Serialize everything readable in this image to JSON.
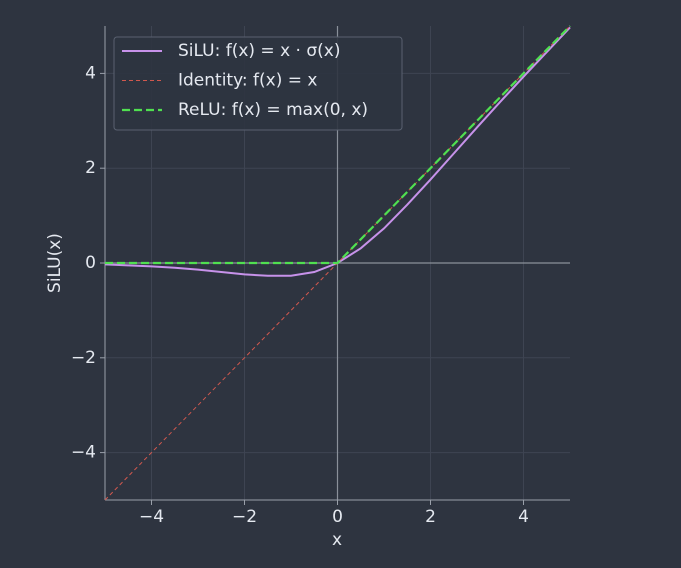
{
  "chart_data": {
    "type": "line",
    "xlabel": "x",
    "ylabel": "SiLU(x)",
    "x": [
      -5,
      -4.5,
      -4,
      -3.5,
      -3,
      -2.5,
      -2,
      -1.5,
      -1,
      -0.5,
      0,
      0.5,
      1,
      1.5,
      2,
      2.5,
      3,
      3.5,
      4,
      4.5,
      5
    ],
    "series": [
      {
        "name": "SiLU: f(x) = x · σ(x)",
        "color": "#c792ea",
        "linestyle": "solid",
        "linewidth": 2,
        "values": [
          -0.03,
          -0.05,
          -0.07,
          -0.1,
          -0.14,
          -0.19,
          -0.24,
          -0.27,
          -0.27,
          -0.19,
          0,
          0.31,
          0.73,
          1.23,
          1.76,
          2.31,
          2.86,
          3.4,
          3.93,
          4.45,
          4.97
        ]
      },
      {
        "name": "Identity: f(x) = x",
        "color": "#d0584e",
        "linestyle": "dashed",
        "linewidth": 1,
        "values": [
          -5,
          -4.5,
          -4,
          -3.5,
          -3,
          -2.5,
          -2,
          -1.5,
          -1,
          -0.5,
          0,
          0.5,
          1,
          1.5,
          2,
          2.5,
          3,
          3.5,
          4,
          4.5,
          5
        ]
      },
      {
        "name": "ReLU: f(x) = max(0, x)",
        "color": "#50e050",
        "linestyle": "dashed",
        "linewidth": 2.2,
        "values": [
          0,
          0,
          0,
          0,
          0,
          0,
          0,
          0,
          0,
          0,
          0,
          0.5,
          1,
          1.5,
          2,
          2.5,
          3,
          3.5,
          4,
          4.5,
          5
        ]
      }
    ],
    "xlim": [
      -5,
      5
    ],
    "ylim": [
      -5,
      5
    ],
    "xticks": [
      {
        "value": -4,
        "label": "−4"
      },
      {
        "value": -2,
        "label": "−2"
      },
      0,
      2,
      4
    ],
    "yticks": [
      {
        "value": -4,
        "label": "−4"
      },
      {
        "value": -2,
        "label": "−2"
      },
      0,
      2,
      4
    ],
    "grid": true,
    "legend": "upper left"
  }
}
